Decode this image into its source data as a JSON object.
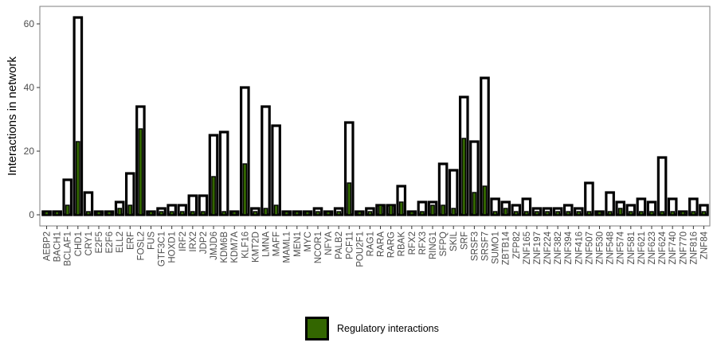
{
  "chart_data": {
    "type": "bar",
    "title": "",
    "xlabel": "",
    "ylabel": "Interactions in network",
    "ylim": [
      -3.5,
      65.5
    ],
    "yticks": [
      0,
      20,
      40,
      60
    ],
    "grid": false,
    "legend_placement": "bottom",
    "colors": {
      "regulatory_fill": "#336600",
      "total_fill": "#ffffff",
      "bar_stroke": "#000000",
      "panel_border": "#7f7f7f"
    },
    "categories": [
      "AEBP2",
      "BACH1",
      "BCLAF1",
      "CHD1",
      "CRY1",
      "E2F5",
      "E2F6",
      "ELL2",
      "ERF",
      "FOSL2",
      "FUS",
      "GTF3C1",
      "HOXD1",
      "IRF2",
      "IRX2",
      "JDP2",
      "JMJD6",
      "KDM6B",
      "KDM7A",
      "KLF16",
      "KMT2D",
      "LMNA",
      "MAFF",
      "MAML1",
      "MEN1",
      "MYC",
      "NCOR1",
      "NFYA",
      "PALB2",
      "PCF11",
      "POU2F1",
      "RAG1",
      "RARA",
      "RARG",
      "RBAK",
      "RFX2",
      "RFX3",
      "RING1",
      "SFPQ",
      "SKIL",
      "SRF",
      "SRSF3",
      "SRSF7",
      "SUMO1",
      "ZBTB14",
      "ZFP82",
      "ZNF165",
      "ZNF197",
      "ZNF224",
      "ZNF382",
      "ZNF394",
      "ZNF416",
      "ZNF507",
      "ZNF530",
      "ZNF548",
      "ZNF574",
      "ZNF581",
      "ZNF621",
      "ZNF623",
      "ZNF624",
      "ZNF740",
      "ZNF770",
      "ZNF816",
      "ZNF84"
    ],
    "series": [
      {
        "name": "",
        "values": [
          1,
          1,
          11,
          62,
          7,
          1,
          1,
          4,
          13,
          34,
          1,
          2,
          3,
          3,
          6,
          6,
          25,
          26,
          1,
          40,
          2,
          34,
          28,
          1,
          1,
          1,
          2,
          1,
          2,
          29,
          1,
          2,
          3,
          3,
          9,
          1,
          4,
          4,
          16,
          14,
          37,
          23,
          43,
          5,
          4,
          3,
          5,
          2,
          2,
          2,
          3,
          2,
          10,
          1,
          7,
          4,
          3,
          5,
          4,
          18,
          5,
          1,
          5,
          3
        ]
      },
      {
        "name": "Regulatory interactions",
        "values": [
          1,
          1,
          3,
          23,
          1,
          1,
          1,
          2,
          3,
          27,
          1,
          1,
          1,
          1,
          1,
          1,
          12,
          1,
          1,
          16,
          1,
          2,
          3,
          1,
          1,
          1,
          1,
          1,
          1,
          10,
          1,
          1,
          3,
          3,
          4,
          1,
          1,
          3,
          3,
          2,
          24,
          7,
          9,
          1,
          2,
          1,
          1,
          1,
          1,
          1,
          1,
          1,
          1,
          1,
          1,
          2,
          1,
          1,
          1,
          1,
          1,
          1,
          1,
          1
        ]
      }
    ]
  }
}
